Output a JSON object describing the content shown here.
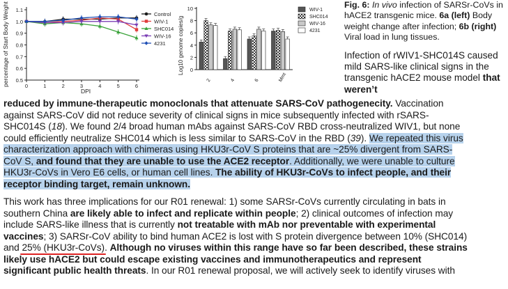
{
  "chart_left": {
    "type": "line",
    "ylabel": "percentage of Start Body Weight",
    "xlabel": "DPI",
    "x_ticks": [
      "0",
      "1",
      "2",
      "3",
      "4",
      "5",
      "6"
    ],
    "y_ticks": [
      "0.5",
      "0.6",
      "0.7",
      "0.8",
      "0.9",
      "1.0",
      "1.1"
    ],
    "ylim": [
      0.5,
      1.1
    ],
    "xlim": [
      0,
      6
    ],
    "series": [
      {
        "name": "Control",
        "color": "#1a1a1a",
        "marker": "circle",
        "values": [
          1.0,
          1.0,
          1.02,
          1.02,
          1.02,
          1.03,
          1.03
        ]
      },
      {
        "name": "WIV-1",
        "color": "#e03c3c",
        "marker": "square",
        "values": [
          1.0,
          0.99,
          1.0,
          1.01,
          1.03,
          1.02,
          0.93
        ]
      },
      {
        "name": "SHC014",
        "color": "#3aa33a",
        "marker": "triangle",
        "values": [
          1.0,
          0.98,
          0.99,
          0.98,
          0.96,
          0.91,
          0.86
        ]
      },
      {
        "name": "WIV-16",
        "color": "#7b3fb5",
        "marker": "triangle-down",
        "values": [
          1.0,
          0.99,
          0.99,
          1.0,
          1.0,
          1.0,
          0.97
        ]
      },
      {
        "name": "4231",
        "color": "#1f4fb5",
        "marker": "diamond",
        "values": [
          1.0,
          1.0,
          1.01,
          1.03,
          1.04,
          1.04,
          1.02
        ]
      }
    ]
  },
  "chart_right": {
    "type": "bar",
    "ylabel": "Log10 genome copies/g",
    "y_ticks": [
      "0",
      "2",
      "4",
      "6",
      "8",
      "10"
    ],
    "ylim": [
      0,
      10
    ],
    "categories": [
      "2",
      "4",
      "6",
      "Mmt"
    ],
    "series": [
      {
        "name": "WIV-1",
        "pattern": "dark",
        "values": [
          4.5,
          1.8,
          5.0,
          6.3
        ]
      },
      {
        "name": "SHC014",
        "pattern": "check",
        "values": [
          8.0,
          6.3,
          5.5,
          6.4
        ]
      },
      {
        "name": "WIV-16",
        "pattern": "light",
        "values": [
          7.3,
          6.6,
          6.6,
          6.2
        ]
      },
      {
        "name": "4231",
        "pattern": "white",
        "values": [
          7.2,
          6.5,
          6.3,
          5.0
        ]
      }
    ]
  },
  "caption": {
    "fig": "Fig. 6:",
    "title_italic": "In vivo",
    "title_rest": " infection of SARSr-CoVs in hACE2 transgenic mice. ",
    "a_label": "6a (left)",
    "a_text": " Body weight change after infection; ",
    "b_label": "6b (right)",
    "b_text": " Viral load in lung tissues."
  },
  "capbody": {
    "text": "Infection of rWIV1-SHC014S caused mild SARS-like clinical signs in the transgenic hACE2 mouse model ",
    "bold": "that weren’t"
  },
  "para1": {
    "l1_bold": "reduced by immune-therapeutic monoclonals that attenuate SARS-CoV pathogenecity.",
    "l1_rest": " Vaccination",
    "l2": "against SARS-CoV did not reduce severity of clinical signs in mice subsequently infected with rSARS-",
    "l3a": "SHC014S (",
    "l3_ref": "18",
    "l3b": "). We found 2/4 broad human mAbs against SARS-CoV RBD cross-neutralized WIV1, but none",
    "l4a": "could efficiently neutralize SHC014 which is less similar to SARS-CoV in the RBD (",
    "l4_ref": "39",
    "l4b": "). ",
    "l4_hl": "We repeated this virus",
    "l5": "characterization approach with chimeras using HKU3r-CoV S proteins that are ~25% divergent from SARS-",
    "l6a": "CoV S, ",
    "l6_bold": "and found that they are unable to use the ACE2 receptor",
    "l6b": ". Additionally, we were unable to culture",
    "l7a": "HKU3r-CoVs in Vero E6 cells, or human cell lines. ",
    "l7_bold": "The ability of HKU3r-CoVs to infect people, and their",
    "l8_bold": "receptor binding target, remain unknown."
  },
  "para2": {
    "l1": "This work has three implications for our R01 renewal: 1) some SARSr-CoVs currently circulating in bats in",
    "l2a": "southern China ",
    "l2_bold": "are likely able to infect and replicate within people",
    "l2b": "; 2) clinical outcomes of infection may",
    "l3a": "include SARS-like illness that is currently ",
    "l3_bold": "not treatable with mAb nor preventable with experimental",
    "l4_bold": "vaccines",
    "l4b": "; 3) SARSr-CoV ability to bind human ACE2 is lost with S protein divergence between 10% (SHC014)",
    "l5a": "and ",
    "l5_ul": "25% (HKU3r-CoVs)",
    "l5b": ". ",
    "l5_bold": "Although no viruses within this range have so far been described, these strains",
    "l6_bold": "likely use hACE2 but could escape existing vaccines and immunotherapeutics and represent",
    "l7_bold": "significant public health threats",
    "l7b": ". In our R01 renewal proposal, we will actively seek to identify viruses with"
  }
}
